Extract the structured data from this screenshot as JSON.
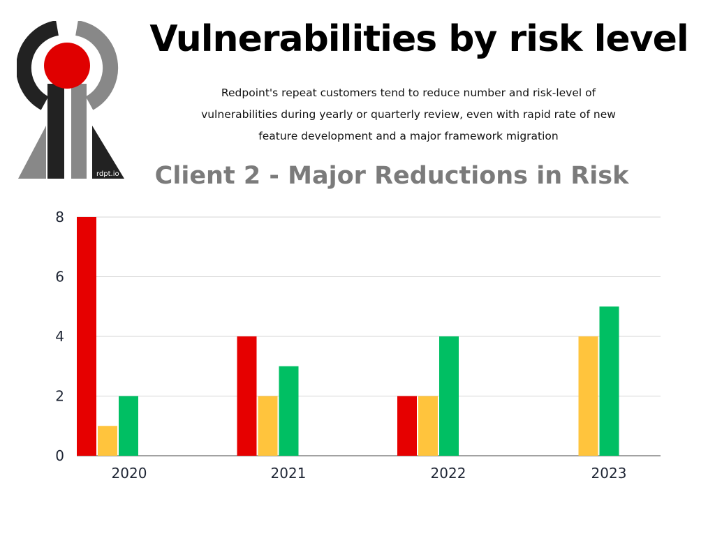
{
  "header": {
    "title": "Vulnerabilities by risk level",
    "subtitle": "Redpoint's repeat customers tend to reduce number and risk-level of vulnerabilities during yearly or quarterly review, even with rapid rate of new feature development and a major framework migration"
  },
  "logo": {
    "text": "rdpt.io",
    "colors": {
      "dark": "#222222",
      "gray": "#888888",
      "red": "#e00000"
    }
  },
  "chart_data": {
    "type": "bar",
    "title": "Client 2 - Major Reductions in Risk",
    "categories": [
      "2020",
      "2021",
      "2022",
      "2023"
    ],
    "series": [
      {
        "color": "#e60000",
        "values": [
          8,
          4,
          2,
          0
        ]
      },
      {
        "color": "#ffc43d",
        "values": [
          1,
          2,
          2,
          4
        ]
      },
      {
        "color": "#00bf63",
        "values": [
          2,
          3,
          4,
          5
        ]
      }
    ],
    "yticks": [
      0,
      2,
      4,
      6,
      8
    ],
    "ylim": [
      0,
      8
    ],
    "grid": true,
    "legend": "none",
    "xlabel": "",
    "ylabel": ""
  }
}
